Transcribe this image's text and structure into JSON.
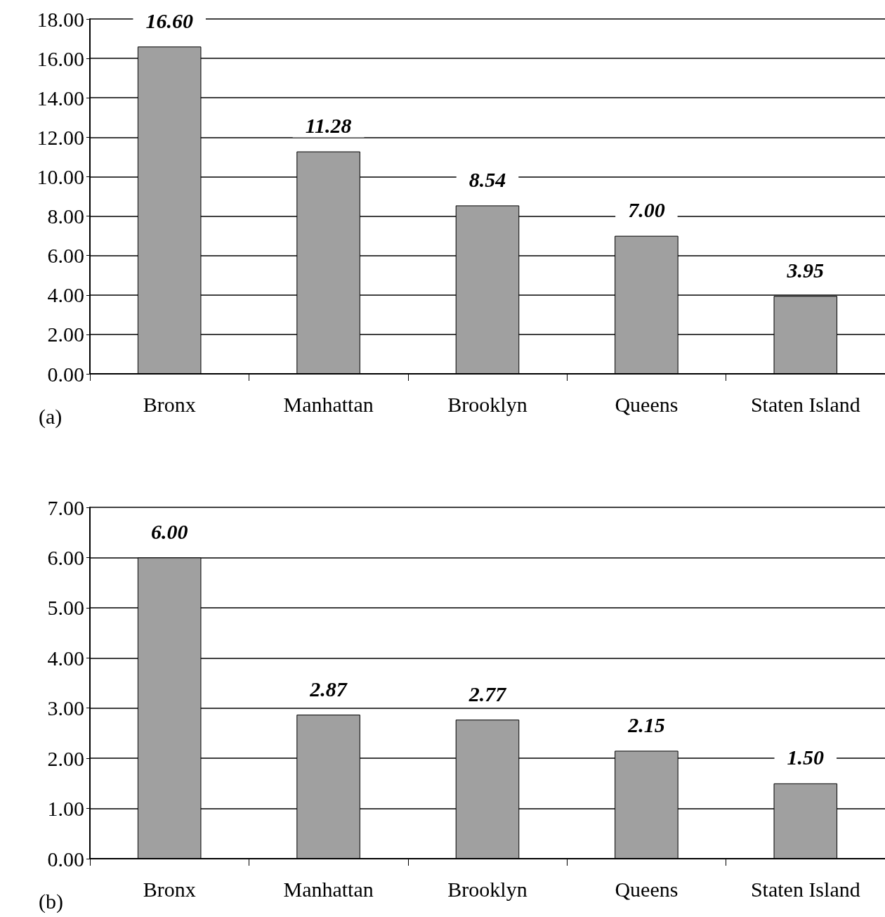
{
  "chart_data": [
    {
      "type": "bar",
      "categories": [
        "Bronx",
        "Manhattan",
        "Brooklyn",
        "Queens",
        "Staten Island"
      ],
      "values": [
        16.6,
        11.28,
        8.54,
        7.0,
        3.95
      ],
      "value_labels": [
        "16.60",
        "11.28",
        "8.54",
        "7.00",
        "3.95"
      ],
      "color": "#a0a0a0",
      "ylim": [
        0,
        18
      ],
      "yticks": [
        {
          "value": 0,
          "label": "0.00"
        },
        {
          "value": 2,
          "label": "2.00"
        },
        {
          "value": 4,
          "label": "4.00"
        },
        {
          "value": 6,
          "label": "6.00"
        },
        {
          "value": 8,
          "label": "8.00"
        },
        {
          "value": 10,
          "label": "10.00"
        },
        {
          "value": 12,
          "label": "12.00"
        },
        {
          "value": 14,
          "label": "14.00"
        },
        {
          "value": 16,
          "label": "16.00"
        },
        {
          "value": 18,
          "label": "18.00"
        }
      ],
      "grid": "y",
      "annotations": [
        "(a)"
      ]
    },
    {
      "type": "bar",
      "categories": [
        "Bronx",
        "Manhattan",
        "Brooklyn",
        "Queens",
        "Staten Island"
      ],
      "values": [
        6.0,
        2.87,
        2.77,
        2.15,
        1.5
      ],
      "value_labels": [
        "6.00",
        "2.87",
        "2.77",
        "2.15",
        "1.50"
      ],
      "color": "#a0a0a0",
      "ylim": [
        0,
        7
      ],
      "yticks": [
        {
          "value": 0,
          "label": "0.00"
        },
        {
          "value": 1,
          "label": "1.00"
        },
        {
          "value": 2,
          "label": "2.00"
        },
        {
          "value": 3,
          "label": "3.00"
        },
        {
          "value": 4,
          "label": "4.00"
        },
        {
          "value": 5,
          "label": "5.00"
        },
        {
          "value": 6,
          "label": "6.00"
        },
        {
          "value": 7,
          "label": "7.00"
        }
      ],
      "grid": "y",
      "annotations": [
        "(b)"
      ]
    }
  ]
}
